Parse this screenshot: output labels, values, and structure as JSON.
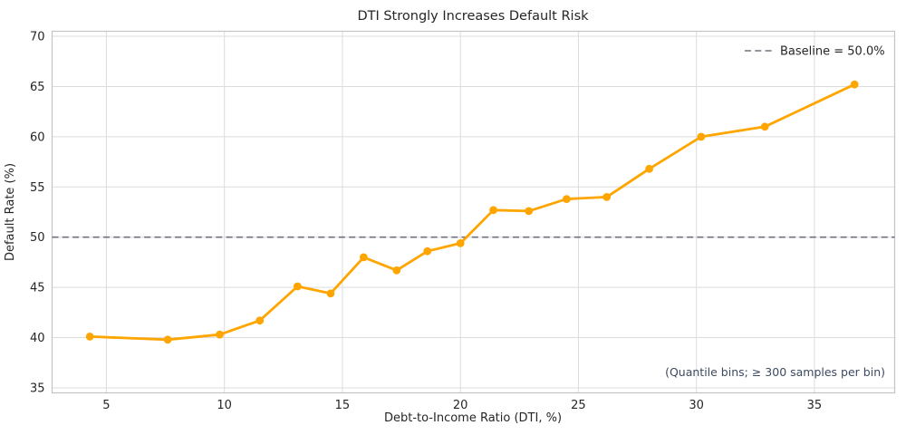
{
  "chart_data": {
    "type": "line",
    "title": "DTI Strongly Increases Default Risk",
    "xlabel": "Debt-to-Income Ratio (DTI, %)",
    "ylabel": "Default Rate (%)",
    "series": [
      {
        "x": [
          4.3,
          7.6,
          9.8,
          11.5,
          13.1,
          14.5,
          15.9,
          17.3,
          18.6,
          20.0,
          21.4,
          22.9,
          24.5,
          26.2,
          28.0,
          30.2,
          32.9,
          36.7
        ],
        "y": [
          40.1,
          39.8,
          40.3,
          41.7,
          45.1,
          44.4,
          48.0,
          46.7,
          48.6,
          49.4,
          52.7,
          52.6,
          53.8,
          54.0,
          56.8,
          60.0,
          61.0,
          65.2
        ],
        "color": "#FFA500",
        "marker": "circle",
        "line_width": 2.8,
        "marker_radius": 4.4
      }
    ],
    "baseline": {
      "value": 50.0,
      "label": "Baseline = 50.0%",
      "color": "#70707E",
      "style": "dashed"
    },
    "annotation": {
      "text": "(Quantile bins; ≥ 300 samples per bin)",
      "color": "#3C4A60",
      "position": "bottom-right"
    },
    "xlim": [
      2.7,
      38.4
    ],
    "ylim": [
      34.5,
      70.5
    ],
    "xticks": [
      5,
      10,
      15,
      20,
      25,
      30,
      35
    ],
    "yticks": [
      35,
      40,
      45,
      50,
      55,
      60,
      65,
      70
    ],
    "grid": true,
    "legend_position": "upper right",
    "colors": {
      "background": "#FFFFFF",
      "grid": "#DCDCDC",
      "spine": "#C4C4C4",
      "text": "#262626"
    }
  }
}
